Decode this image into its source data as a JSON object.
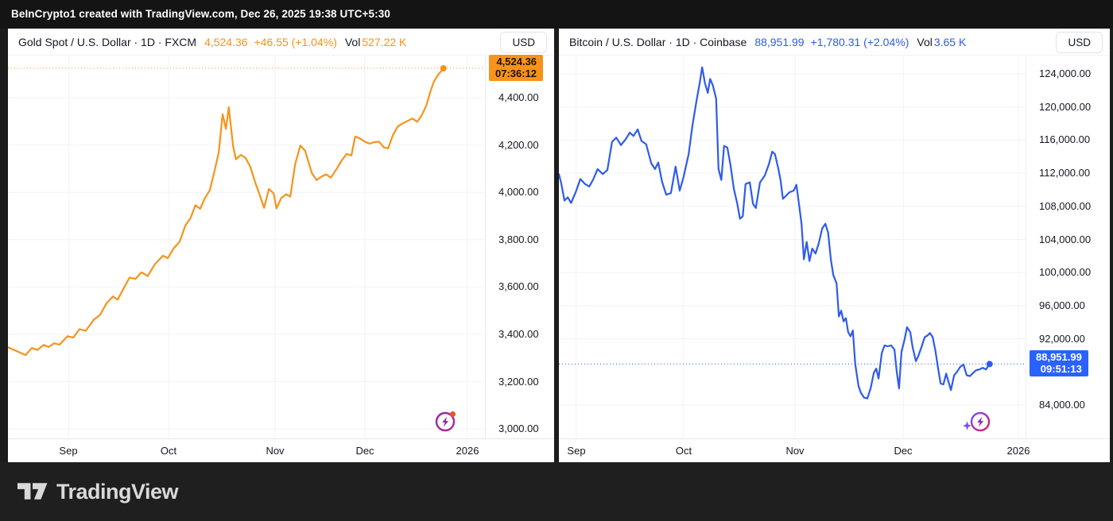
{
  "attribution_bar": {
    "text": "BeInCrypto1 created with TradingView.com, Dec 26, 2025 19:38 UTC+5:30"
  },
  "footer": {
    "brand_name": "TradingView"
  },
  "icons": {
    "left_panel": "spark-bolt-with-red-dot",
    "right_panel": "spark-bolt-with-sparkle-star"
  },
  "chart_data": [
    {
      "type": "line",
      "symbol": "Gold Spot / U.S. Dollar",
      "interval": "1D",
      "exchange": "FXCM",
      "title_full": "Gold Spot / U.S. Dollar · 1D · FXCM",
      "last_price": "4,524.36",
      "change": "+46.55 (+1.04%)",
      "vol_label": "Vol",
      "volume": "527.22 K",
      "currency_button": "USD",
      "accent_color": "#F7931A",
      "grid": true,
      "badge": {
        "price": "4,524.36",
        "countdown": "07:36:12",
        "bg": "#F7931A",
        "fg": "#1E1200"
      },
      "current_price": 4524.36,
      "y_range": [
        2960,
        4578
      ],
      "y_ticks": [
        {
          "label": "4,400.00",
          "value": 4400
        },
        {
          "label": "4,200.00",
          "value": 4200
        },
        {
          "label": "4,000.00",
          "value": 4000
        },
        {
          "label": "3,800.00",
          "value": 3800
        },
        {
          "label": "3,600.00",
          "value": 3600
        },
        {
          "label": "3,400.00",
          "value": 3400
        },
        {
          "label": "3,200.00",
          "value": 3200
        },
        {
          "label": "3,000.00",
          "value": 3000
        }
      ],
      "x_ticks": [
        {
          "label": "Sep",
          "pos": 0.127
        },
        {
          "label": "Oct",
          "pos": 0.337
        },
        {
          "label": "Nov",
          "pos": 0.56
        },
        {
          "label": "Dec",
          "pos": 0.748
        },
        {
          "label": "2026",
          "pos": 0.963
        }
      ],
      "points": [
        [
          0.0,
          3345
        ],
        [
          0.017,
          3330
        ],
        [
          0.037,
          3312
        ],
        [
          0.05,
          3342
        ],
        [
          0.062,
          3334
        ],
        [
          0.075,
          3355
        ],
        [
          0.085,
          3346
        ],
        [
          0.097,
          3362
        ],
        [
          0.108,
          3356
        ],
        [
          0.125,
          3392
        ],
        [
          0.137,
          3386
        ],
        [
          0.15,
          3422
        ],
        [
          0.163,
          3415
        ],
        [
          0.18,
          3462
        ],
        [
          0.193,
          3482
        ],
        [
          0.207,
          3532
        ],
        [
          0.22,
          3560
        ],
        [
          0.23,
          3546
        ],
        [
          0.242,
          3592
        ],
        [
          0.255,
          3640
        ],
        [
          0.267,
          3634
        ],
        [
          0.28,
          3662
        ],
        [
          0.293,
          3646
        ],
        [
          0.308,
          3696
        ],
        [
          0.325,
          3732
        ],
        [
          0.335,
          3722
        ],
        [
          0.347,
          3762
        ],
        [
          0.36,
          3792
        ],
        [
          0.372,
          3860
        ],
        [
          0.383,
          3892
        ],
        [
          0.393,
          3946
        ],
        [
          0.403,
          3930
        ],
        [
          0.413,
          3976
        ],
        [
          0.423,
          4008
        ],
        [
          0.433,
          4090
        ],
        [
          0.442,
          4170
        ],
        [
          0.45,
          4330
        ],
        [
          0.457,
          4268
        ],
        [
          0.463,
          4360
        ],
        [
          0.472,
          4195
        ],
        [
          0.478,
          4140
        ],
        [
          0.488,
          4158
        ],
        [
          0.498,
          4146
        ],
        [
          0.508,
          4108
        ],
        [
          0.518,
          4044
        ],
        [
          0.528,
          3988
        ],
        [
          0.537,
          3934
        ],
        [
          0.547,
          4014
        ],
        [
          0.557,
          3996
        ],
        [
          0.563,
          3932
        ],
        [
          0.573,
          3976
        ],
        [
          0.583,
          3992
        ],
        [
          0.592,
          3982
        ],
        [
          0.602,
          4118
        ],
        [
          0.613,
          4198
        ],
        [
          0.623,
          4176
        ],
        [
          0.637,
          4082
        ],
        [
          0.647,
          4052
        ],
        [
          0.657,
          4066
        ],
        [
          0.667,
          4076
        ],
        [
          0.677,
          4062
        ],
        [
          0.69,
          4102
        ],
        [
          0.7,
          4136
        ],
        [
          0.71,
          4162
        ],
        [
          0.72,
          4156
        ],
        [
          0.728,
          4236
        ],
        [
          0.738,
          4228
        ],
        [
          0.748,
          4214
        ],
        [
          0.758,
          4206
        ],
        [
          0.768,
          4212
        ],
        [
          0.778,
          4214
        ],
        [
          0.788,
          4190
        ],
        [
          0.797,
          4186
        ],
        [
          0.807,
          4242
        ],
        [
          0.817,
          4278
        ],
        [
          0.828,
          4292
        ],
        [
          0.838,
          4302
        ],
        [
          0.848,
          4312
        ],
        [
          0.858,
          4298
        ],
        [
          0.867,
          4324
        ],
        [
          0.877,
          4366
        ],
        [
          0.885,
          4422
        ],
        [
          0.893,
          4468
        ],
        [
          0.902,
          4498
        ],
        [
          0.908,
          4512
        ],
        [
          0.913,
          4524.36
        ]
      ]
    },
    {
      "type": "line",
      "symbol": "Bitcoin / U.S. Dollar",
      "interval": "1D",
      "exchange": "Coinbase",
      "title_full": "Bitcoin / U.S. Dollar · 1D · Coinbase",
      "last_price": "88,951.99",
      "change": "+1,780.31 (+2.04%)",
      "vol_label": "Vol",
      "volume": "3.65 K",
      "currency_button": "USD",
      "accent_color": "#2E5BEB",
      "grid": true,
      "badge": {
        "price": "88,951.99",
        "countdown": "09:51:13",
        "bg": "#2962FF",
        "fg": "#FFFFFF"
      },
      "current_price": 88951.99,
      "y_range": [
        79970,
        126210
      ],
      "y_ticks": [
        {
          "label": "124,000.00",
          "value": 124000
        },
        {
          "label": "120,000.00",
          "value": 120000
        },
        {
          "label": "116,000.00",
          "value": 116000
        },
        {
          "label": "112,000.00",
          "value": 112000
        },
        {
          "label": "108,000.00",
          "value": 108000
        },
        {
          "label": "104,000.00",
          "value": 104000
        },
        {
          "label": "100,000.00",
          "value": 100000
        },
        {
          "label": "96,000.00",
          "value": 96000
        },
        {
          "label": "92,000.00",
          "value": 92000
        },
        {
          "label": "84,000.00",
          "value": 84000
        }
      ],
      "x_ticks": [
        {
          "label": "Sep",
          "pos": 0.037
        },
        {
          "label": "Oct",
          "pos": 0.267
        },
        {
          "label": "Nov",
          "pos": 0.506
        },
        {
          "label": "Dec",
          "pos": 0.738
        },
        {
          "label": "2026",
          "pos": 0.985
        }
      ],
      "points": [
        [
          0.0,
          111900
        ],
        [
          0.005,
          110800
        ],
        [
          0.012,
          108700
        ],
        [
          0.019,
          109100
        ],
        [
          0.026,
          108400
        ],
        [
          0.036,
          109700
        ],
        [
          0.046,
          111300
        ],
        [
          0.056,
          110700
        ],
        [
          0.065,
          110400
        ],
        [
          0.073,
          111200
        ],
        [
          0.083,
          112500
        ],
        [
          0.094,
          111900
        ],
        [
          0.104,
          112400
        ],
        [
          0.114,
          115800
        ],
        [
          0.123,
          116300
        ],
        [
          0.133,
          115400
        ],
        [
          0.143,
          116100
        ],
        [
          0.152,
          116900
        ],
        [
          0.16,
          116500
        ],
        [
          0.169,
          117300
        ],
        [
          0.177,
          115900
        ],
        [
          0.187,
          115500
        ],
        [
          0.198,
          113200
        ],
        [
          0.206,
          112500
        ],
        [
          0.213,
          113300
        ],
        [
          0.221,
          111000
        ],
        [
          0.23,
          109400
        ],
        [
          0.24,
          109600
        ],
        [
          0.25,
          112800
        ],
        [
          0.259,
          109900
        ],
        [
          0.267,
          111500
        ],
        [
          0.278,
          114300
        ],
        [
          0.286,
          117700
        ],
        [
          0.295,
          120800
        ],
        [
          0.302,
          123000
        ],
        [
          0.307,
          124800
        ],
        [
          0.313,
          122900
        ],
        [
          0.319,
          121700
        ],
        [
          0.324,
          123400
        ],
        [
          0.33,
          122600
        ],
        [
          0.337,
          121000
        ],
        [
          0.342,
          112500
        ],
        [
          0.348,
          111200
        ],
        [
          0.354,
          115300
        ],
        [
          0.361,
          115100
        ],
        [
          0.368,
          112900
        ],
        [
          0.375,
          110100
        ],
        [
          0.382,
          108400
        ],
        [
          0.388,
          106500
        ],
        [
          0.394,
          106800
        ],
        [
          0.4,
          110700
        ],
        [
          0.409,
          110900
        ],
        [
          0.416,
          108300
        ],
        [
          0.422,
          107800
        ],
        [
          0.431,
          110900
        ],
        [
          0.441,
          111700
        ],
        [
          0.45,
          113100
        ],
        [
          0.457,
          114600
        ],
        [
          0.463,
          114300
        ],
        [
          0.47,
          112600
        ],
        [
          0.475,
          111200
        ],
        [
          0.48,
          108900
        ],
        [
          0.487,
          109300
        ],
        [
          0.494,
          109700
        ],
        [
          0.503,
          109900
        ],
        [
          0.509,
          110600
        ],
        [
          0.514,
          108500
        ],
        [
          0.52,
          105900
        ],
        [
          0.525,
          101600
        ],
        [
          0.531,
          103700
        ],
        [
          0.537,
          101400
        ],
        [
          0.543,
          102900
        ],
        [
          0.55,
          102300
        ],
        [
          0.557,
          103600
        ],
        [
          0.564,
          105300
        ],
        [
          0.571,
          105900
        ],
        [
          0.577,
          104800
        ],
        [
          0.583,
          101500
        ],
        [
          0.588,
          99700
        ],
        [
          0.595,
          98700
        ],
        [
          0.6,
          94700
        ],
        [
          0.605,
          95400
        ],
        [
          0.61,
          94100
        ],
        [
          0.615,
          94500
        ],
        [
          0.62,
          92800
        ],
        [
          0.625,
          92300
        ],
        [
          0.63,
          93000
        ],
        [
          0.635,
          89000
        ],
        [
          0.642,
          86300
        ],
        [
          0.647,
          85500
        ],
        [
          0.654,
          84900
        ],
        [
          0.661,
          84800
        ],
        [
          0.668,
          86000
        ],
        [
          0.675,
          87900
        ],
        [
          0.68,
          88400
        ],
        [
          0.685,
          87200
        ],
        [
          0.692,
          90300
        ],
        [
          0.698,
          91200
        ],
        [
          0.705,
          91100
        ],
        [
          0.712,
          91200
        ],
        [
          0.719,
          90700
        ],
        [
          0.724,
          88000
        ],
        [
          0.729,
          86000
        ],
        [
          0.734,
          90400
        ],
        [
          0.741,
          92000
        ],
        [
          0.746,
          93400
        ],
        [
          0.753,
          92800
        ],
        [
          0.758,
          91000
        ],
        [
          0.765,
          89300
        ],
        [
          0.77,
          89900
        ],
        [
          0.777,
          91000
        ],
        [
          0.784,
          92200
        ],
        [
          0.79,
          92400
        ],
        [
          0.795,
          92700
        ],
        [
          0.801,
          92200
        ],
        [
          0.807,
          90500
        ],
        [
          0.813,
          88300
        ],
        [
          0.818,
          86600
        ],
        [
          0.824,
          86500
        ],
        [
          0.83,
          87800
        ],
        [
          0.835,
          86800
        ],
        [
          0.84,
          85800
        ],
        [
          0.847,
          87600
        ],
        [
          0.853,
          88000
        ],
        [
          0.86,
          88600
        ],
        [
          0.867,
          88900
        ],
        [
          0.874,
          87600
        ],
        [
          0.881,
          87500
        ],
        [
          0.888,
          87900
        ],
        [
          0.894,
          88200
        ],
        [
          0.901,
          88300
        ],
        [
          0.908,
          88500
        ],
        [
          0.915,
          88300
        ],
        [
          0.923,
          88951.99
        ]
      ]
    }
  ]
}
